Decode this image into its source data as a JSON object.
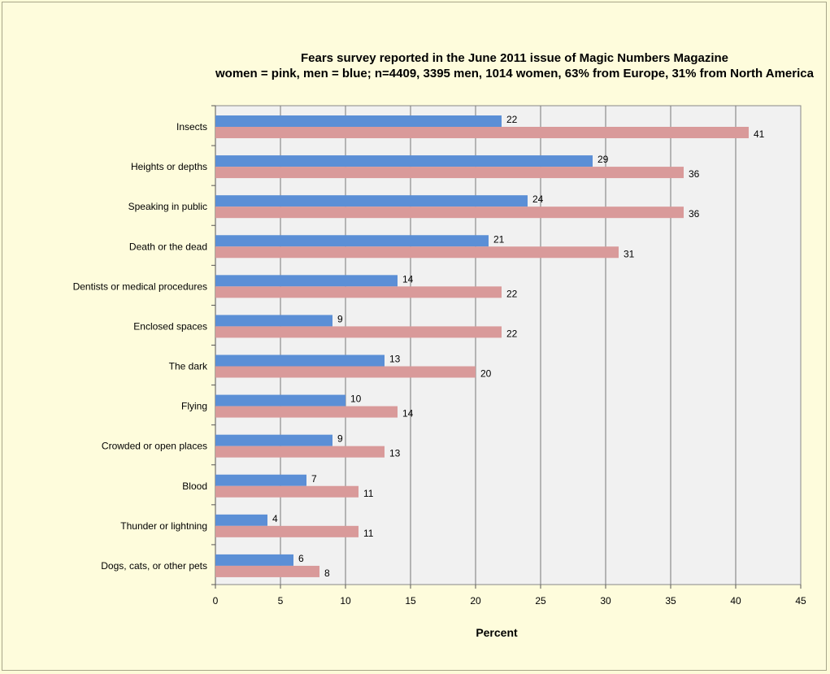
{
  "chart_data": {
    "type": "bar",
    "orientation": "horizontal",
    "title": "Fears survey reported in the June 2011 issue of Magic Numbers Magazine",
    "subtitle": "women = pink, men = blue; n=4409, 3395 men, 1014 women, 63% from Europe, 31% from North America",
    "xlabel": "Percent",
    "ylabel": "",
    "xlim": [
      0,
      45
    ],
    "xticks": [
      0,
      5,
      10,
      15,
      20,
      25,
      30,
      35,
      40,
      45
    ],
    "grid": true,
    "legend": false,
    "categories": [
      "Insects",
      "Heights or depths",
      "Speaking in public",
      "Death or the dead",
      "Dentists or medical procedures",
      "Enclosed spaces",
      "The dark",
      "Flying",
      "Crowded or open places",
      "Blood",
      "Thunder or lightning",
      "Dogs, cats, or other pets"
    ],
    "series": [
      {
        "color": "#5b8fd6",
        "values": [
          22,
          29,
          24,
          21,
          14,
          9,
          13,
          10,
          9,
          7,
          4,
          6
        ]
      },
      {
        "color": "#d99a9a",
        "values": [
          41,
          36,
          36,
          31,
          22,
          22,
          20,
          14,
          13,
          11,
          11,
          8
        ]
      }
    ]
  },
  "colors": {
    "page_background": "#fefcdc",
    "plot_background": "#f1f1f1"
  }
}
